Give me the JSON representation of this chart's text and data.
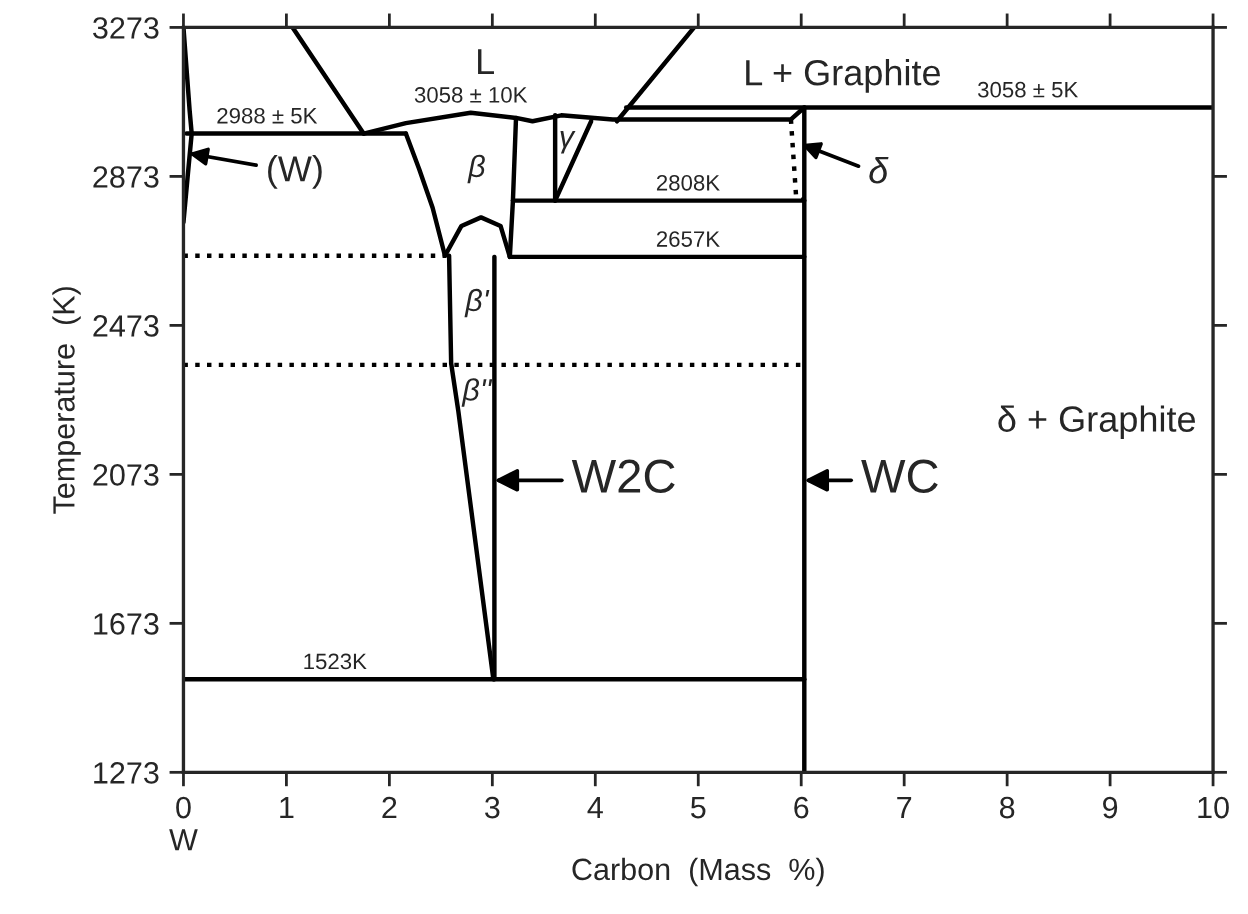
{
  "chart_data": {
    "type": "line",
    "xlabel": "Carbon  (Mass  %)",
    "ylabel": "Temperature  (K)",
    "xlim": [
      0,
      10
    ],
    "xticks": [
      0,
      1,
      2,
      3,
      4,
      5,
      6,
      7,
      8,
      9,
      10
    ],
    "ylim": [
      1273,
      3273
    ],
    "yticks": [
      1273,
      1673,
      2073,
      2473,
      2873,
      3273
    ],
    "grid": false,
    "legend": false,
    "series": [
      {
        "color": "#000000",
        "x": [
          0,
          0.06,
          0.08,
          0.04,
          0
        ],
        "values": [
          3273,
          3050,
          2988,
          2870,
          2750
        ]
      },
      {
        "color": "#000000",
        "x": [
          0.03,
          2.16
        ],
        "values": [
          2988,
          2988
        ]
      },
      {
        "color": "#000000",
        "x": [
          1.06,
          1.75
        ],
        "values": [
          3273,
          2988
        ]
      },
      {
        "color": "#000000",
        "x": [
          4.96,
          4.21
        ],
        "values": [
          3273,
          3021
        ]
      },
      {
        "color": "#000000",
        "x": [
          1.75,
          2.16,
          2.79,
          3.23,
          3.39,
          3.67,
          4.17,
          5.9,
          6.03
        ],
        "values": [
          2988,
          3016,
          3044,
          3030,
          3021,
          3037,
          3026,
          3026,
          3058
        ]
      },
      {
        "color": "#000000",
        "x": [
          2.16,
          2.29,
          2.42,
          2.54
        ],
        "values": [
          2988,
          2892,
          2789,
          2660
        ]
      },
      {
        "color": "#000000",
        "x": [
          3.23,
          3.2,
          3.17
        ],
        "values": [
          3030,
          2808,
          2657
        ]
      },
      {
        "color": "#000000",
        "x": [
          2.54,
          2.7,
          2.89,
          3.08,
          3.17
        ],
        "values": [
          2660,
          2740,
          2763,
          2740,
          2657
        ]
      },
      {
        "color": "#000000",
        "x": [
          2.58,
          2.6,
          2.67,
          3.01
        ],
        "values": [
          2660,
          2371,
          2242,
          1523
        ]
      },
      {
        "color": "#000000",
        "x": [
          3.02,
          3.02
        ],
        "values": [
          1523,
          2657
        ]
      },
      {
        "color": "#000000",
        "x": [
          3.2,
          6.03
        ],
        "values": [
          2808,
          2808
        ]
      },
      {
        "color": "#000000",
        "x": [
          3.17,
          6.03
        ],
        "values": [
          2657,
          2657
        ]
      },
      {
        "color": "#000000",
        "x": [
          3.61,
          3.61
        ],
        "values": [
          3037,
          2808
        ]
      },
      {
        "color": "#000000",
        "x": [
          3.96,
          3.61
        ],
        "values": [
          3021,
          2808
        ]
      },
      {
        "color": "#000000",
        "x": [
          4.3,
          10
        ],
        "values": [
          3058,
          3058
        ]
      },
      {
        "color": "#000000",
        "x": [
          5.9,
          5.95,
          6.03
        ],
        "values": [
          3026,
          2820,
          2808
        ],
        "line_style": "dotted"
      },
      {
        "color": "#000000",
        "x": [
          6.03,
          6.03
        ],
        "values": [
          1273,
          3058
        ]
      },
      {
        "color": "#000000",
        "x": [
          0,
          6.03
        ],
        "values": [
          1523,
          1523
        ]
      },
      {
        "color": "#000000",
        "x": [
          0,
          2.54
        ],
        "values": [
          2660,
          2660
        ],
        "line_style": "dotted"
      },
      {
        "color": "#000000",
        "x": [
          0,
          6.03
        ],
        "values": [
          2367,
          2367
        ],
        "line_style": "dotted"
      }
    ],
    "annotations": [
      "L",
      "L + Graphite",
      {
        "text": "3058 ± 10K",
        "x": 2.79,
        "y": 3044
      },
      {
        "text": "3058 ± 5K",
        "x": 8.2,
        "y": 3058
      },
      {
        "text": "2988 ± 5K",
        "x": 0.81,
        "y": 2988
      },
      "β",
      "γ",
      {
        "text": "2808K",
        "x": 4.9,
        "y": 2808
      },
      {
        "text": "2657K",
        "x": 4.9,
        "y": 2657
      },
      "β'",
      "β''",
      "δ + Graphite",
      {
        "text": "1523K",
        "x": 1.47,
        "y": 1523
      },
      {
        "text": "(W)",
        "x": 0.05,
        "y": 2935
      },
      {
        "text": "δ",
        "x": 6.0,
        "y": 2960
      },
      {
        "text": "W2C",
        "x": 3.02,
        "y": 2057
      },
      {
        "text": "WC",
        "x": 6.03,
        "y": 2057
      },
      "W"
    ]
  }
}
